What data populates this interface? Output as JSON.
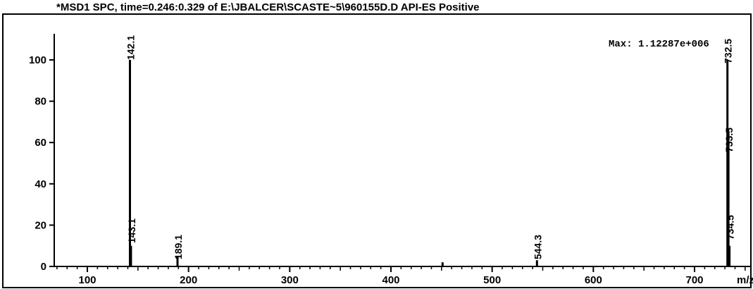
{
  "chart_data": {
    "type": "bar",
    "title": "*MSD1 SPC, time=0.246:0.329 of E:\\JBALCER\\SCASTE~5\\960155D.D  API-ES Positive",
    "max_label": "Max: 1.12287e+006",
    "xlabel": "m/z",
    "ylabel": "",
    "xlim": [
      40,
      770
    ],
    "ylim": [
      0,
      110
    ],
    "x_ticks": [
      100,
      200,
      300,
      400,
      500,
      600,
      700
    ],
    "y_ticks": [
      0,
      20,
      40,
      60,
      80,
      100
    ],
    "peaks": [
      {
        "x": 142.1,
        "value": 100,
        "label": "142.1"
      },
      {
        "x": 143.1,
        "value": 10,
        "label": "143.1"
      },
      {
        "x": 189.1,
        "value": 5,
        "label": "189.1"
      },
      {
        "x": 451,
        "value": 2,
        "label": ""
      },
      {
        "x": 544.3,
        "value": 3,
        "label": "544.3"
      },
      {
        "x": 732.5,
        "value": 100,
        "label": "732.5"
      },
      {
        "x": 733.5,
        "value": 65,
        "label": "733.5"
      },
      {
        "x": 734.5,
        "value": 10,
        "label": "734.5"
      }
    ]
  }
}
